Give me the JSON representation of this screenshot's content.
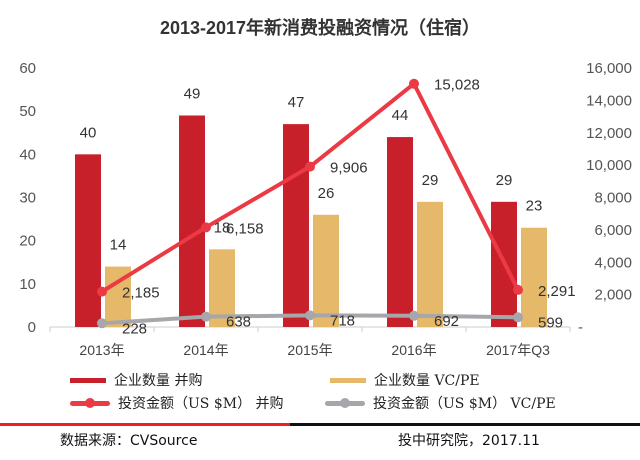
{
  "chart_data": {
    "type": "bar",
    "title": "2013-2017年新消费投融资情况（住宿）",
    "categories": [
      "2013年",
      "2014年",
      "2015年",
      "2016年",
      "2017年Q3"
    ],
    "y_left": {
      "range": [
        0,
        60
      ],
      "ticks": [
        "0",
        "10",
        "20",
        "30",
        "40",
        "50",
        "60"
      ]
    },
    "y_right": {
      "range": [
        0,
        16000
      ],
      "ticks": [
        "-",
        "2,000",
        "4,000",
        "6,000",
        "8,000",
        "10,000",
        "12,000",
        "14,000",
        "16,000"
      ]
    },
    "series": [
      {
        "name": "企业数量 并购",
        "type": "bar",
        "axis": "left",
        "color": "#c8202a",
        "values": [
          40,
          49,
          47,
          44,
          29
        ],
        "labels": [
          "40",
          "49",
          "47",
          "44",
          "29"
        ]
      },
      {
        "name": "企业数量 VC/PE",
        "type": "bar",
        "axis": "left",
        "color": "#e6b86a",
        "values": [
          14,
          18,
          26,
          29,
          23
        ],
        "labels": [
          "14",
          "18",
          "26",
          "29",
          "23"
        ]
      },
      {
        "name": "投资金额（US $M） 并购",
        "type": "line",
        "axis": "right",
        "color": "#eb3a44",
        "values": [
          2185,
          6158,
          9906,
          15028,
          2291
        ],
        "labels": [
          "2,185",
          "6,158",
          "9,906",
          "15,028",
          "2,291"
        ]
      },
      {
        "name": "投资金额（US $M） VC/PE",
        "type": "line",
        "axis": "right",
        "color": "#a6a6ab",
        "values": [
          228,
          638,
          718,
          692,
          599
        ],
        "labels": [
          "228",
          "638",
          "718",
          "692",
          "599"
        ]
      }
    ]
  },
  "footer": {
    "source": "数据来源：CVSource",
    "credit": "投中研究院，2017.11"
  }
}
